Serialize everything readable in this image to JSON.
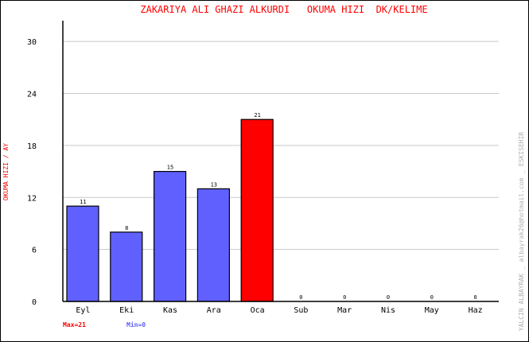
{
  "chart_data": {
    "type": "bar",
    "title": "ZAKARIYA ALI GHAZI ALKURDI   OKUMA HIZI  DK/KELIME",
    "ylabel": "OKUMA HIZI / AY",
    "xlabel": "",
    "categories": [
      "Eyl",
      "Eki",
      "Kas",
      "Ara",
      "Oca",
      "Sub",
      "Mar",
      "Nis",
      "May",
      "Haz"
    ],
    "values": [
      11,
      8,
      15,
      13,
      21,
      0,
      0,
      0,
      0,
      0
    ],
    "ylim": [
      0,
      32.4
    ],
    "yticks": [
      0,
      6,
      12,
      18,
      24,
      30
    ],
    "grid": true,
    "highlight_index": 4,
    "colors": {
      "bar": "#6060ff",
      "highlight": "#ff0000",
      "grid": "#c8c8c8",
      "title": "#ff0000",
      "max": "#ff0000",
      "min": "#6060ff",
      "credit": "#b0b0b0"
    },
    "max_label": "Max=21",
    "min_label": "Min=0",
    "credit": "YALCIN ALBAYRAK _ albayrak26@hotmail.com _ ESKISEHIR"
  }
}
